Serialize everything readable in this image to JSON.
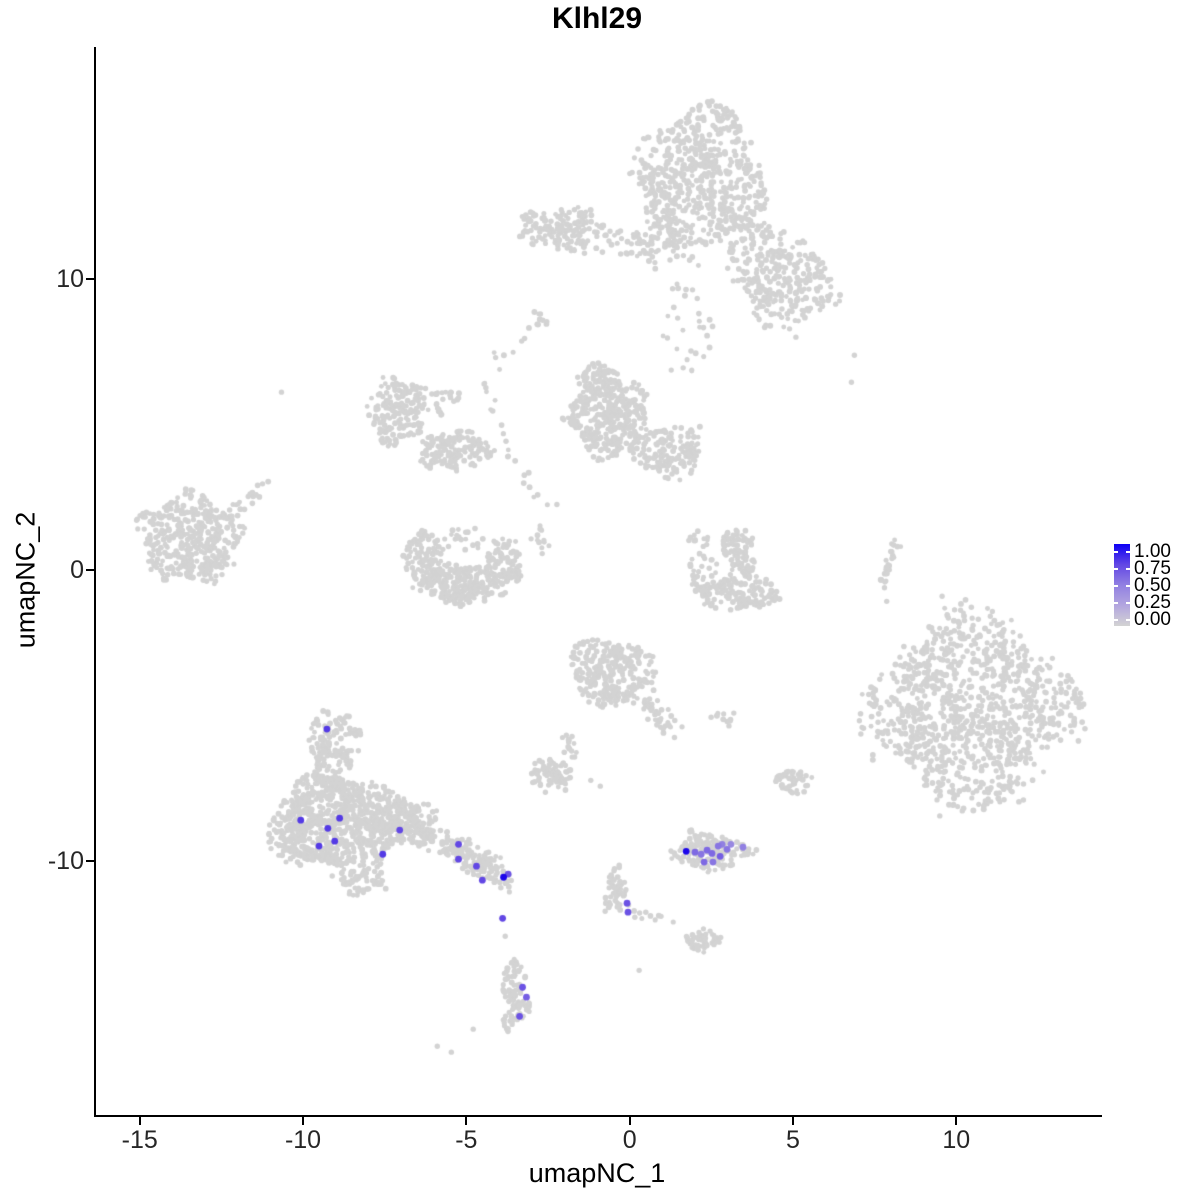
{
  "title": "Klhl29",
  "axes": {
    "xlabel": "umapNC_1",
    "ylabel": "umapNC_2",
    "x_ticks": [
      -15,
      -10,
      -5,
      0,
      5,
      10
    ],
    "y_ticks": [
      10,
      0,
      -10
    ]
  },
  "legend": {
    "tick_labels": [
      "1.00",
      "0.75",
      "0.50",
      "0.25",
      "0.00"
    ],
    "gradient_top_color": "#0d00f5",
    "gradient_bottom_color": "#d3d3d3"
  },
  "colors": {
    "background_point": "#d3d3d3",
    "value_scale_stops": [
      "#d3d3d3",
      "#b3a6df",
      "#9180e2",
      "#6247e4",
      "#1c06ea"
    ]
  },
  "chart_data": {
    "type": "scatter",
    "title": "Klhl29",
    "xlabel": "umapNC_1",
    "ylabel": "umapNC_2",
    "xlim": [
      -16.4,
      14.4
    ],
    "ylim": [
      -18.72,
      17.98
    ],
    "grid": false,
    "legend_position": "right",
    "background_clusters": [
      {
        "name": "top-main",
        "cx": 2.13,
        "cy": 13.4,
        "rx": 1.9,
        "ry": 2.47,
        "n": 620
      },
      {
        "name": "top-right-lobe",
        "cx": 4.88,
        "cy": 9.79,
        "rx": 1.47,
        "ry": 1.44,
        "n": 230
      },
      {
        "name": "top-bridge",
        "cx": 3.81,
        "cy": 11.07,
        "rx": 0.98,
        "ry": 1.24,
        "n": 90
      },
      {
        "name": "top-left-scatter",
        "cx": 0.96,
        "cy": 11.62,
        "rx": 0.8,
        "ry": 1.44,
        "n": 40
      },
      {
        "name": "top-below-scatter",
        "cx": 1.76,
        "cy": 8.25,
        "rx": 0.73,
        "ry": 1.58,
        "n": 30
      },
      {
        "name": "upperleft-horiz",
        "cx": -2.06,
        "cy": 11.72,
        "rx": 1.32,
        "ry": 0.72,
        "n": 150
      },
      {
        "name": "upperleft-ext",
        "cx": -0.08,
        "cy": 11.24,
        "rx": 0.92,
        "ry": 0.45,
        "n": 35
      },
      {
        "name": "small-dash",
        "cx": -2.8,
        "cy": 8.69,
        "rx": 0.34,
        "ry": 0.27,
        "n": 8
      },
      {
        "name": "arc-a",
        "cx": -7.11,
        "cy": 5.46,
        "rx": 0.89,
        "ry": 1.13,
        "n": 170
      },
      {
        "name": "arc-b",
        "cx": -5.37,
        "cy": 4.09,
        "rx": 1.1,
        "ry": 0.65,
        "n": 150
      },
      {
        "name": "arc-sparse",
        "cx": -5.89,
        "cy": 5.88,
        "rx": 0.64,
        "ry": 0.52,
        "n": 28
      },
      {
        "name": "mid-main",
        "cx": -0.63,
        "cy": 5.29,
        "rx": 1.25,
        "ry": 1.41,
        "n": 360
      },
      {
        "name": "mid-right",
        "cx": 1.18,
        "cy": 4.06,
        "rx": 1.1,
        "ry": 0.89,
        "n": 150
      },
      {
        "name": "mid-top",
        "cx": -0.96,
        "cy": 6.56,
        "rx": 0.58,
        "ry": 0.55,
        "n": 55
      },
      {
        "name": "mid-south-sparse",
        "cx": -2.62,
        "cy": 1.03,
        "rx": 0.46,
        "ry": 0.69,
        "n": 12
      },
      {
        "name": "bowl-left",
        "cx": -6.28,
        "cy": 0.38,
        "rx": 0.61,
        "ry": 0.96,
        "n": 100
      },
      {
        "name": "bowl-bottom",
        "cx": -5.12,
        "cy": -0.48,
        "rx": 1.25,
        "ry": 0.69,
        "n": 220
      },
      {
        "name": "bowl-right",
        "cx": -3.84,
        "cy": 0.31,
        "rx": 0.55,
        "ry": 0.89,
        "n": 90
      },
      {
        "name": "bowl-inner",
        "cx": -5.18,
        "cy": 1.07,
        "rx": 0.92,
        "ry": 0.41,
        "n": 22
      },
      {
        "name": "left-main",
        "cx": -13.47,
        "cy": 1.1,
        "rx": 1.53,
        "ry": 1.55,
        "n": 400
      },
      {
        "name": "croissant-top",
        "cx": 3.26,
        "cy": 0.93,
        "rx": 0.49,
        "ry": 0.52,
        "n": 55
      },
      {
        "name": "croissant-mid",
        "cx": 3.44,
        "cy": 0.14,
        "rx": 0.4,
        "ry": 0.62,
        "n": 45
      },
      {
        "name": "croissant-bottom",
        "cx": 3.35,
        "cy": -0.76,
        "rx": 1.25,
        "ry": 0.58,
        "n": 150
      },
      {
        "name": "croissant-left",
        "cx": 2.22,
        "cy": -0.07,
        "rx": 0.43,
        "ry": 0.69,
        "n": 30
      },
      {
        "name": "croissant-dots",
        "cx": 2.13,
        "cy": 1.07,
        "rx": 0.4,
        "ry": 0.38,
        "n": 12
      },
      {
        "name": "big-right",
        "cx": 10.44,
        "cy": -4.74,
        "rx": 3.03,
        "ry": 3.16,
        "n": 950
      },
      {
        "name": "big-right-fringe",
        "cx": 10.44,
        "cy": -4.74,
        "rx": 3.43,
        "ry": 3.57,
        "n": 60
      },
      {
        "name": "mid-bottom",
        "cx": -0.57,
        "cy": -3.47,
        "rx": 1.28,
        "ry": 1.13,
        "n": 270
      },
      {
        "name": "small-blob",
        "cx": -2.4,
        "cy": -7.01,
        "rx": 0.7,
        "ry": 0.52,
        "n": 70
      },
      {
        "name": "small-blob-up",
        "cx": -1.88,
        "cy": -6.15,
        "rx": 0.28,
        "ry": 0.52,
        "n": 14
      },
      {
        "name": "tiny-pair",
        "cx": 2.86,
        "cy": -5.09,
        "rx": 0.4,
        "ry": 0.27,
        "n": 10
      },
      {
        "name": "small-right",
        "cx": 5.03,
        "cy": -7.32,
        "rx": 0.58,
        "ry": 0.45,
        "n": 45
      },
      {
        "name": "lowerleft-top",
        "cx": -9.04,
        "cy": -5.98,
        "rx": 0.8,
        "ry": 1.24,
        "n": 140
      },
      {
        "name": "lowerleft-main",
        "cx": -8.88,
        "cy": -8.66,
        "rx": 1.87,
        "ry": 1.65,
        "n": 720
      },
      {
        "name": "lowerleft-left",
        "cx": -10.44,
        "cy": -8.97,
        "rx": 0.58,
        "ry": 1.24,
        "n": 60
      },
      {
        "name": "lowerleft-right",
        "cx": -6.87,
        "cy": -8.69,
        "rx": 0.95,
        "ry": 0.86,
        "n": 150
      },
      {
        "name": "lowerleft-bottom",
        "cx": -8.21,
        "cy": -10.72,
        "rx": 0.8,
        "ry": 0.45,
        "n": 50
      },
      {
        "name": "strip",
        "cx": -0.41,
        "cy": -11.0,
        "rx": 0.34,
        "ry": 0.79,
        "n": 55
      },
      {
        "name": "comma",
        "cx": 2.22,
        "cy": -12.71,
        "rx": 0.52,
        "ry": 0.41,
        "n": 55
      },
      {
        "name": "purple-base",
        "cx": 2.43,
        "cy": -9.69,
        "rx": 1.19,
        "ry": 0.58,
        "n": 150
      },
      {
        "name": "purple-base-nub",
        "cx": 1.82,
        "cy": -9.18,
        "rx": 0.28,
        "ry": 0.38,
        "n": 12
      },
      {
        "name": "banana-a",
        "cx": -3.53,
        "cy": -13.85,
        "rx": 0.34,
        "ry": 0.41,
        "n": 30
      },
      {
        "name": "banana-b",
        "cx": -3.62,
        "cy": -14.47,
        "rx": 0.31,
        "ry": 0.38,
        "n": 28
      },
      {
        "name": "banana-c",
        "cx": -3.44,
        "cy": -15.05,
        "rx": 0.37,
        "ry": 0.41,
        "n": 32
      },
      {
        "name": "banana-d",
        "cx": -3.75,
        "cy": -15.53,
        "rx": 0.24,
        "ry": 0.31,
        "n": 14
      }
    ],
    "background_trails": [
      {
        "name": "long-trail",
        "pts": [
          [
            -2.83,
            8.66
          ],
          [
            -3.84,
            7.39
          ],
          [
            -4.51,
            6.12
          ],
          [
            -3.99,
            4.57
          ],
          [
            -3.17,
            3.2
          ],
          [
            -2.49,
            2.16
          ]
        ],
        "n": 32,
        "jitter": 0.15
      },
      {
        "name": "left-tail",
        "pts": [
          [
            -12.19,
            1.92
          ],
          [
            -11.24,
            2.78
          ]
        ],
        "n": 22,
        "jitter": 0.18
      },
      {
        "name": "right-arc",
        "pts": [
          [
            8.18,
            1.0
          ],
          [
            7.94,
            0.27
          ],
          [
            7.75,
            -0.52
          ]
        ],
        "n": 24,
        "jitter": 0.09
      },
      {
        "name": "mid-bottom-tail",
        "pts": [
          [
            0.44,
            -4.4
          ],
          [
            1.27,
            -5.6
          ]
        ],
        "n": 40,
        "jitter": 0.22
      },
      {
        "name": "lowerleft-tail",
        "pts": [
          [
            -6.44,
            -8.87
          ],
          [
            -5.37,
            -9.52
          ],
          [
            -4.6,
            -10.03
          ],
          [
            -3.84,
            -10.65
          ]
        ],
        "n": 170,
        "jitter": 0.28
      },
      {
        "name": "strip-dashes",
        "pts": [
          [
            0.05,
            -11.68
          ],
          [
            1.15,
            -12.13
          ]
        ],
        "n": 10,
        "jitter": 0.1
      }
    ],
    "gray_singles": [
      [
        6.88,
        7.39
      ],
      [
        6.79,
        6.46
      ],
      [
        -10.66,
        6.12
      ],
      [
        5.09,
        8.01
      ],
      [
        -0.75,
        -11.72
      ],
      [
        -4.79,
        -15.77
      ],
      [
        -5.89,
        -16.36
      ],
      [
        -5.46,
        -16.56
      ],
      [
        0.29,
        -13.75
      ],
      [
        -1.19,
        -7.22
      ],
      [
        -0.9,
        -7.42
      ],
      [
        -2.58,
        -7.63
      ],
      [
        7.87,
        -1.07
      ],
      [
        -3.81,
        -12.58
      ]
    ],
    "highlighted_points": [
      {
        "x": -9.27,
        "y": -5.46,
        "value": 0.8
      },
      {
        "x": -10.07,
        "y": -8.59,
        "value": 0.8
      },
      {
        "x": -8.88,
        "y": -8.52,
        "value": 0.8
      },
      {
        "x": -9.24,
        "y": -8.87,
        "value": 0.8
      },
      {
        "x": -9.03,
        "y": -9.31,
        "value": 0.8
      },
      {
        "x": -9.51,
        "y": -9.48,
        "value": 0.8
      },
      {
        "x": -7.04,
        "y": -8.93,
        "value": 0.75
      },
      {
        "x": -7.56,
        "y": -9.76,
        "value": 0.8
      },
      {
        "x": -5.24,
        "y": -9.42,
        "value": 0.75
      },
      {
        "x": -5.24,
        "y": -9.93,
        "value": 0.75
      },
      {
        "x": -4.69,
        "y": -10.17,
        "value": 0.75
      },
      {
        "x": -4.51,
        "y": -10.65,
        "value": 0.75
      },
      {
        "x": -3.86,
        "y": -10.55,
        "value": 1.0
      },
      {
        "x": -3.72,
        "y": -10.44,
        "value": 0.7
      },
      {
        "x": -3.89,
        "y": -11.96,
        "value": 0.75
      },
      {
        "x": -3.28,
        "y": -14.33,
        "value": 0.7
      },
      {
        "x": -3.16,
        "y": -14.67,
        "value": 0.65
      },
      {
        "x": -3.37,
        "y": -15.33,
        "value": 0.7
      },
      {
        "x": -0.08,
        "y": -11.44,
        "value": 0.7
      },
      {
        "x": -0.05,
        "y": -11.75,
        "value": 0.7
      },
      {
        "x": 1.73,
        "y": -9.66,
        "value": 1.0
      },
      {
        "x": 2.0,
        "y": -9.69,
        "value": 0.6
      },
      {
        "x": 2.19,
        "y": -9.76,
        "value": 0.55
      },
      {
        "x": 2.37,
        "y": -9.62,
        "value": 0.6
      },
      {
        "x": 2.52,
        "y": -9.73,
        "value": 0.6
      },
      {
        "x": 2.71,
        "y": -9.48,
        "value": 0.55
      },
      {
        "x": 2.83,
        "y": -9.42,
        "value": 0.5
      },
      {
        "x": 2.98,
        "y": -9.59,
        "value": 0.55
      },
      {
        "x": 3.1,
        "y": -9.42,
        "value": 0.45
      },
      {
        "x": 2.77,
        "y": -9.83,
        "value": 0.65
      },
      {
        "x": 2.28,
        "y": -10.03,
        "value": 0.6
      },
      {
        "x": 2.55,
        "y": -10.03,
        "value": 0.55
      },
      {
        "x": 3.47,
        "y": -9.52,
        "value": 0.5
      }
    ]
  }
}
